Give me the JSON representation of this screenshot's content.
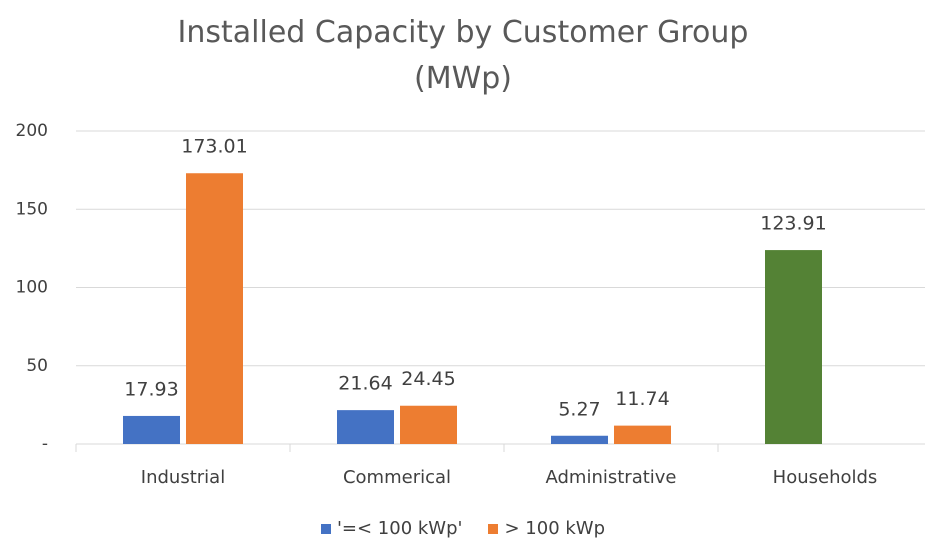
{
  "chart_data": {
    "type": "bar",
    "title": "Installed Capacity by Customer Group (MWp)",
    "categories": [
      "Industrial",
      "Commerical",
      "Administrative",
      "Households"
    ],
    "series": [
      {
        "name": "'=< 100 kWp'",
        "color": "#4472c4",
        "colors": [
          "#4472c4",
          "#4472c4",
          "#4472c4",
          "#548235"
        ],
        "values": [
          17.93,
          21.64,
          5.27,
          123.91
        ]
      },
      {
        "name": "> 100 kWp",
        "color": "#ed7d31",
        "values": [
          173.01,
          24.45,
          11.74,
          null
        ]
      }
    ],
    "ylim": [
      0,
      200
    ],
    "yticks": [
      {
        "value": 0,
        "label": "-"
      },
      50,
      100,
      150,
      200
    ],
    "grid": true
  }
}
